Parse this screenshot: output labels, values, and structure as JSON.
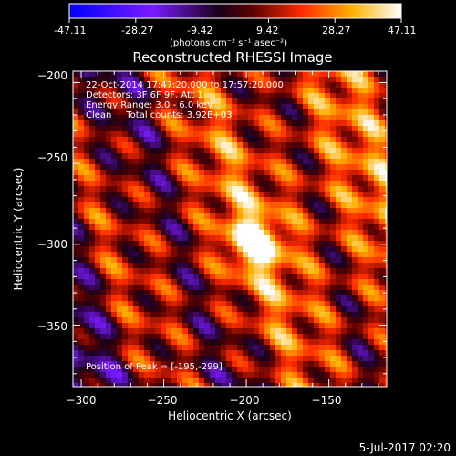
{
  "colorbar": {
    "ticks": [
      "-47.11",
      "-28.27",
      "-9.42",
      "9.42",
      "28.27",
      "47.11"
    ],
    "units": "(photons cm⁻² s⁻¹ asec⁻²)",
    "range": [
      -47.11,
      47.11
    ]
  },
  "chart_data": {
    "type": "heatmap",
    "title": "Reconstructed RHESSI Image",
    "xlabel": "Heliocentric X (arcsec)",
    "ylabel": "Heliocentric Y (arcsec)",
    "xlim": [
      -305,
      -115
    ],
    "ylim": [
      -388,
      -193
    ],
    "x_ticks": [
      -300,
      -250,
      -200,
      -150
    ],
    "y_ticks": [
      -200,
      -250,
      -300,
      -350
    ],
    "x_tick_labels": [
      "−300",
      "−250",
      "−200",
      "−150"
    ],
    "y_tick_labels": [
      "−200",
      "−250",
      "−300",
      "−350"
    ],
    "colormap": "rhessi-diverging (blue-purple-black-red-orange-yellow-white)",
    "value_range": [
      -47.11,
      47.11
    ],
    "grid": false,
    "peak": {
      "x": -195,
      "y": -299,
      "value": 47.11
    },
    "info_lines": [
      "22-Oct-2014 17:47:20.000 to 17:57:20.000",
      "Detectors: 3F 6F 9F, Att 1",
      "Energy Range: 3.0 - 6.0 keV",
      "Clean     Total counts: 3.92E+03"
    ],
    "peak_label": "Position of Peak = [-195,-299]"
  },
  "footer": {
    "date": "5-Jul-2017 02:20"
  }
}
